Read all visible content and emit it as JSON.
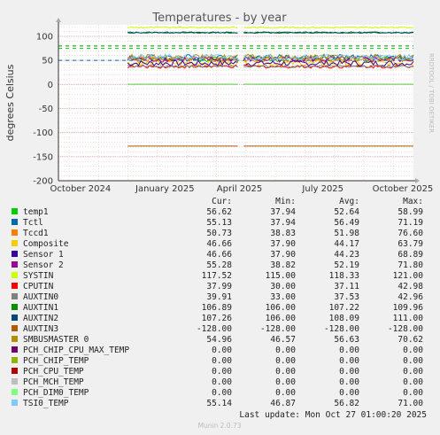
{
  "chart_data": {
    "type": "line",
    "title": "Temperatures - by year",
    "ylabel": "degrees Celsius",
    "side_label": "RRDTOOL / TOBI OETIKER",
    "ylim": [
      -200,
      130
    ],
    "yticks": [
      100,
      50,
      0,
      -50,
      -100,
      -150,
      -200
    ],
    "xticks": [
      "October 2024",
      "January 2025",
      "April 2025",
      "July 2025",
      "October 2025"
    ],
    "grid": true,
    "legend_headers": [
      "Cur:",
      "Min:",
      "Avg:",
      "Max:"
    ],
    "series": [
      {
        "name": "temp1",
        "color": "#00cc00",
        "cur": "56.62",
        "min": "37.94",
        "avg": "52.64",
        "max": "58.99"
      },
      {
        "name": "Tctl",
        "color": "#0066b3",
        "cur": "55.13",
        "min": "37.94",
        "avg": "56.49",
        "max": "71.19"
      },
      {
        "name": "Tccd1",
        "color": "#ff8000",
        "cur": "50.73",
        "min": "38.83",
        "avg": "51.98",
        "max": "76.60"
      },
      {
        "name": "Composite",
        "color": "#ffcc00",
        "cur": "46.66",
        "min": "37.90",
        "avg": "44.17",
        "max": "63.79"
      },
      {
        "name": "Sensor 1",
        "color": "#330099",
        "cur": "46.66",
        "min": "37.90",
        "avg": "44.23",
        "max": "68.89"
      },
      {
        "name": "Sensor 2",
        "color": "#990099",
        "cur": "55.28",
        "min": "38.82",
        "avg": "52.19",
        "max": "71.80"
      },
      {
        "name": "SYSTIN",
        "color": "#ccff00",
        "cur": "117.52",
        "min": "115.00",
        "avg": "118.33",
        "max": "121.00"
      },
      {
        "name": "CPUTIN",
        "color": "#ff0000",
        "cur": "37.99",
        "min": "30.00",
        "avg": "37.11",
        "max": "42.98"
      },
      {
        "name": "AUXTIN0",
        "color": "#808080",
        "cur": "39.91",
        "min": "33.00",
        "avg": "37.53",
        "max": "42.96"
      },
      {
        "name": "AUXTIN1",
        "color": "#008f00",
        "cur": "106.89",
        "min": "106.00",
        "avg": "107.22",
        "max": "109.96"
      },
      {
        "name": "AUXTIN2",
        "color": "#00487d",
        "cur": "107.26",
        "min": "106.00",
        "avg": "108.09",
        "max": "111.00"
      },
      {
        "name": "AUXTIN3",
        "color": "#b35a00",
        "cur": "-128.00",
        "min": "-128.00",
        "avg": "-128.00",
        "max": "-128.00"
      },
      {
        "name": "SMBUSMASTER 0",
        "color": "#b38f00",
        "cur": "54.96",
        "min": "46.57",
        "avg": "56.63",
        "max": "70.62"
      },
      {
        "name": "PCH_CHIP_CPU_MAX_TEMP",
        "color": "#6b006b",
        "cur": "0.00",
        "min": "0.00",
        "avg": "0.00",
        "max": "0.00"
      },
      {
        "name": "PCH_CHIP_TEMP",
        "color": "#8fb300",
        "cur": "0.00",
        "min": "0.00",
        "avg": "0.00",
        "max": "0.00"
      },
      {
        "name": "PCH_CPU_TEMP",
        "color": "#b30000",
        "cur": "0.00",
        "min": "0.00",
        "avg": "0.00",
        "max": "0.00"
      },
      {
        "name": "PCH_MCH_TEMP",
        "color": "#bebebe",
        "cur": "0.00",
        "min": "0.00",
        "avg": "0.00",
        "max": "0.00"
      },
      {
        "name": "PCH_DIM0_TEMP",
        "color": "#80ff80",
        "cur": "0.00",
        "min": "0.00",
        "avg": "0.00",
        "max": "0.00"
      },
      {
        "name": "TSI0_TEMP",
        "color": "#80c9ff",
        "cur": "55.14",
        "min": "46.87",
        "avg": "56.82",
        "max": "71.00"
      }
    ],
    "thresholds": [
      {
        "value": 50,
        "color": "#0066b3"
      },
      {
        "value": 75,
        "color": "#00cc00"
      },
      {
        "value": 80,
        "color": "#008f00"
      }
    ],
    "last_update": "Last update: Mon Oct 27 01:00:20 2025",
    "footer": "Munin 2.0.73"
  }
}
